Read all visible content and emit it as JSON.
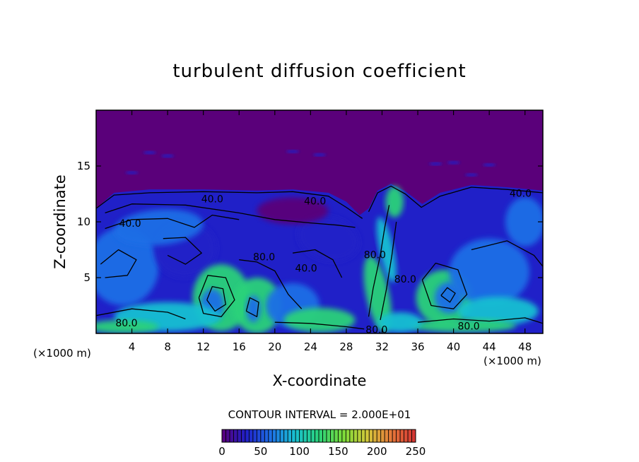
{
  "chart_data": {
    "type": "heatmap",
    "title": "turbulent diffusion coefficient",
    "xlabel": "X-coordinate",
    "ylabel": "Z-coordinate",
    "x_unit_left": "(×1000 m)",
    "x_unit_right": "(×1000 m)",
    "xlim": [
      0,
      50
    ],
    "ylim": [
      0,
      20
    ],
    "x_ticks": [
      4,
      8,
      12,
      16,
      20,
      24,
      28,
      32,
      36,
      40,
      44,
      48
    ],
    "y_ticks": [
      5,
      10,
      15
    ],
    "contour_interval_text": "CONTOUR INTERVAL = 2.000E+01",
    "contour_interval": 20,
    "colorbar": {
      "min": 0,
      "max": 250,
      "tick_values": [
        0,
        50,
        100,
        150,
        200,
        250
      ],
      "colors": [
        "#5a007a",
        "#2020c8",
        "#1e6ee6",
        "#19c0d2",
        "#2ad27a",
        "#7adc3a",
        "#d2c83a",
        "#e6783a",
        "#d23232"
      ]
    },
    "contour_labels": [
      {
        "text": "40.0",
        "x": 13.0,
        "z": 12.0
      },
      {
        "text": "40.0",
        "x": 24.5,
        "z": 11.8
      },
      {
        "text": "40.0",
        "x": 3.8,
        "z": 9.8
      },
      {
        "text": "40.0",
        "x": 23.5,
        "z": 5.8
      },
      {
        "text": "80.0",
        "x": 18.8,
        "z": 6.8
      },
      {
        "text": "80.0",
        "x": 31.2,
        "z": 7.0
      },
      {
        "text": "80.0",
        "x": 34.6,
        "z": 4.8
      },
      {
        "text": "80.0",
        "x": 3.4,
        "z": 0.9
      },
      {
        "text": "80.0",
        "x": 31.4,
        "z": 0.3
      },
      {
        "text": "80.0",
        "x": 41.7,
        "z": 0.6
      },
      {
        "text": "40.0",
        "x": 47.5,
        "z": 12.5
      }
    ],
    "regions": {
      "stratosphere_value": 0,
      "boundary_top_z": 12.5
    }
  }
}
